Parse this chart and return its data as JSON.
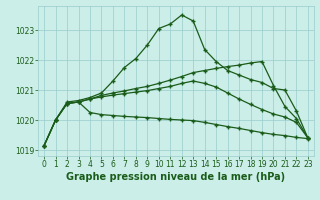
{
  "bg_color": "#cceee8",
  "grid_color": "#99cccc",
  "line_color": "#1a5c1a",
  "marker": "+",
  "markersize": 3,
  "linewidth": 0.9,
  "markeredgewidth": 1.0,
  "title": "Graphe pression niveau de la mer (hPa)",
  "title_fontsize": 7,
  "xlim": [
    -0.5,
    23.5
  ],
  "ylim": [
    1018.8,
    1023.8
  ],
  "yticks": [
    1019,
    1020,
    1021,
    1022,
    1023
  ],
  "xticks": [
    0,
    1,
    2,
    3,
    4,
    5,
    6,
    7,
    8,
    9,
    10,
    11,
    12,
    13,
    14,
    15,
    16,
    17,
    18,
    19,
    20,
    21,
    22,
    23
  ],
  "series": [
    [
      1019.15,
      1020.0,
      1020.6,
      1020.65,
      1020.75,
      1020.9,
      1021.3,
      1021.75,
      1022.05,
      1022.5,
      1023.05,
      1023.2,
      1023.5,
      1023.3,
      1022.35,
      1021.95,
      1021.65,
      1021.5,
      1021.35,
      1021.25,
      1021.05,
      1021.0,
      1020.3,
      1019.4
    ],
    [
      1019.15,
      1020.0,
      1020.55,
      1020.6,
      1020.7,
      1020.82,
      1020.9,
      1020.97,
      1021.05,
      1021.12,
      1021.22,
      1021.33,
      1021.45,
      1021.58,
      1021.65,
      1021.72,
      1021.78,
      1021.83,
      1021.9,
      1021.95,
      1021.15,
      1020.45,
      1020.05,
      1019.4
    ],
    [
      1019.15,
      1020.0,
      1020.55,
      1020.6,
      1020.7,
      1020.77,
      1020.83,
      1020.88,
      1020.93,
      1020.98,
      1021.05,
      1021.12,
      1021.22,
      1021.3,
      1021.22,
      1021.1,
      1020.9,
      1020.7,
      1020.52,
      1020.35,
      1020.2,
      1020.1,
      1019.92,
      1019.4
    ],
    [
      1019.15,
      1020.0,
      1020.55,
      1020.6,
      1020.25,
      1020.18,
      1020.15,
      1020.12,
      1020.1,
      1020.08,
      1020.05,
      1020.02,
      1020.0,
      1019.98,
      1019.92,
      1019.85,
      1019.78,
      1019.72,
      1019.65,
      1019.58,
      1019.52,
      1019.48,
      1019.42,
      1019.38
    ]
  ]
}
